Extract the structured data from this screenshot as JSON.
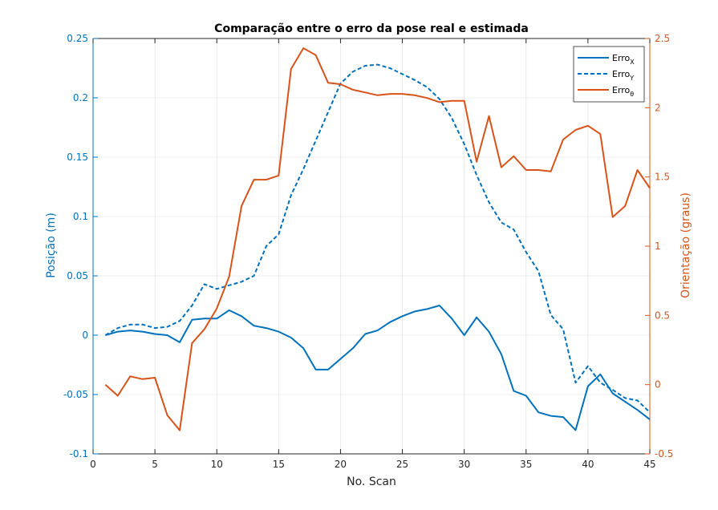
{
  "chart_data": {
    "type": "line",
    "title": "Comparação entre o erro da pose real e estimada",
    "xlabel": "No. Scan",
    "ylabel_left": "Posição (m)",
    "ylabel_right": "Orientação (graus)",
    "xlim": [
      0,
      45
    ],
    "ylim_left": [
      -0.1,
      0.25
    ],
    "ylim_right": [
      -0.5,
      2.5
    ],
    "xticks": [
      "0",
      "5",
      "10",
      "15",
      "20",
      "25",
      "30",
      "35",
      "40",
      "45"
    ],
    "yticks_left": [
      "-0.1",
      "-0.05",
      "0",
      "0.05",
      "0.1",
      "0.15",
      "0.2",
      "0.25"
    ],
    "yticks_right": [
      "-0.5",
      "0",
      "0.5",
      "1",
      "1.5",
      "2",
      "2.5"
    ],
    "grid": true,
    "legend_position": "top-right",
    "colors": {
      "left_axis": "#0072BD",
      "right_axis": "#D95319"
    },
    "x": [
      1,
      2,
      3,
      4,
      5,
      6,
      7,
      8,
      9,
      10,
      11,
      12,
      13,
      14,
      15,
      16,
      17,
      18,
      19,
      20,
      21,
      22,
      23,
      24,
      25,
      26,
      27,
      28,
      29,
      30,
      31,
      32,
      33,
      34,
      35,
      36,
      37,
      38,
      39,
      40,
      41,
      42,
      43,
      44,
      45
    ],
    "series": [
      {
        "name": "Erro",
        "subscript": "X",
        "axis": "left",
        "style": "solid",
        "values": [
          0.0,
          0.003,
          0.004,
          0.003,
          0.001,
          0.0,
          -0.006,
          0.013,
          0.014,
          0.014,
          0.021,
          0.016,
          0.008,
          0.006,
          0.003,
          -0.002,
          -0.011,
          -0.029,
          -0.029,
          -0.02,
          -0.011,
          0.001,
          0.004,
          0.011,
          0.016,
          0.02,
          0.022,
          0.025,
          0.014,
          0.0,
          0.015,
          0.003,
          -0.016,
          -0.047,
          -0.051,
          -0.065,
          -0.068,
          -0.069,
          -0.08,
          -0.043,
          -0.033,
          -0.049,
          -0.056,
          -0.063,
          -0.071
        ]
      },
      {
        "name": "Erro",
        "subscript": "Y",
        "axis": "left",
        "style": "dashed",
        "values": [
          0.0,
          0.006,
          0.009,
          0.009,
          0.006,
          0.007,
          0.012,
          0.025,
          0.043,
          0.039,
          0.042,
          0.045,
          0.05,
          0.075,
          0.085,
          0.118,
          0.14,
          0.164,
          0.188,
          0.212,
          0.222,
          0.227,
          0.228,
          0.225,
          0.22,
          0.215,
          0.209,
          0.199,
          0.183,
          0.161,
          0.135,
          0.112,
          0.095,
          0.089,
          0.07,
          0.054,
          0.017,
          0.005,
          -0.04,
          -0.026,
          -0.04,
          -0.046,
          -0.053,
          -0.055,
          -0.065
        ]
      },
      {
        "name": "Erro",
        "subscript": "θ",
        "axis": "right",
        "style": "solid",
        "values": [
          0.0,
          -0.08,
          0.06,
          0.04,
          0.05,
          -0.22,
          -0.33,
          0.3,
          0.4,
          0.55,
          0.78,
          1.29,
          1.48,
          1.48,
          1.51,
          2.28,
          2.43,
          2.38,
          2.18,
          2.17,
          2.13,
          2.11,
          2.09,
          2.1,
          2.1,
          2.09,
          2.07,
          2.04,
          2.05,
          2.05,
          1.61,
          1.94,
          1.57,
          1.65,
          1.55,
          1.55,
          1.54,
          1.77,
          1.84,
          1.87,
          1.81,
          1.21,
          1.29,
          1.55,
          1.42
        ]
      }
    ]
  }
}
